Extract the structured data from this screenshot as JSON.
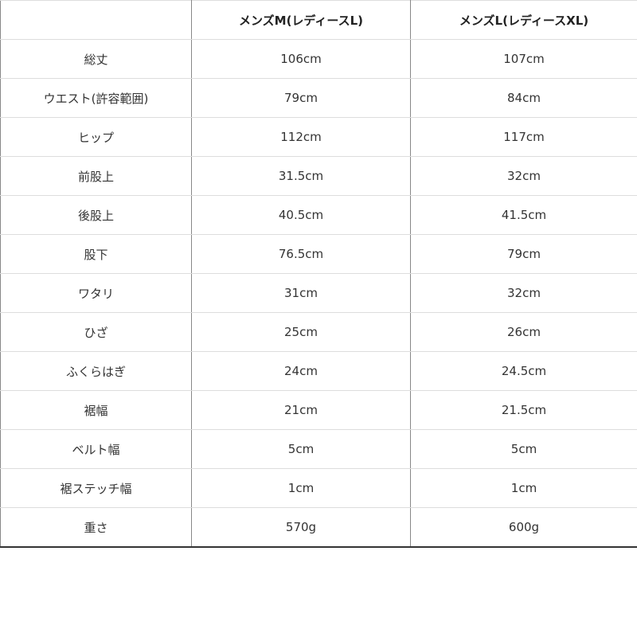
{
  "headers": [
    "",
    "メンズM(レディースL)",
    "メンズL(レディースXL)"
  ],
  "rows": [
    [
      "総丈",
      "106cm",
      "107cm"
    ],
    [
      "ウエスト(許容範囲)",
      "79cm",
      "84cm"
    ],
    [
      "ヒップ",
      "112cm",
      "117cm"
    ],
    [
      "前股上",
      "31.5cm",
      "32cm"
    ],
    [
      "後股上",
      "40.5cm",
      "41.5cm"
    ],
    [
      "股下",
      "76.5cm",
      "79cm"
    ],
    [
      "ワタリ",
      "31cm",
      "32cm"
    ],
    [
      "ひざ",
      "25cm",
      "26cm"
    ],
    [
      "ふくらはぎ",
      "24cm",
      "24.5cm"
    ],
    [
      "裾幅",
      "21cm",
      "21.5cm"
    ],
    [
      "ベルト幅",
      "5cm",
      "5cm"
    ],
    [
      "裾ステッチ幅",
      "1cm",
      "1cm"
    ],
    [
      "重さ",
      "570g",
      "600g"
    ]
  ]
}
